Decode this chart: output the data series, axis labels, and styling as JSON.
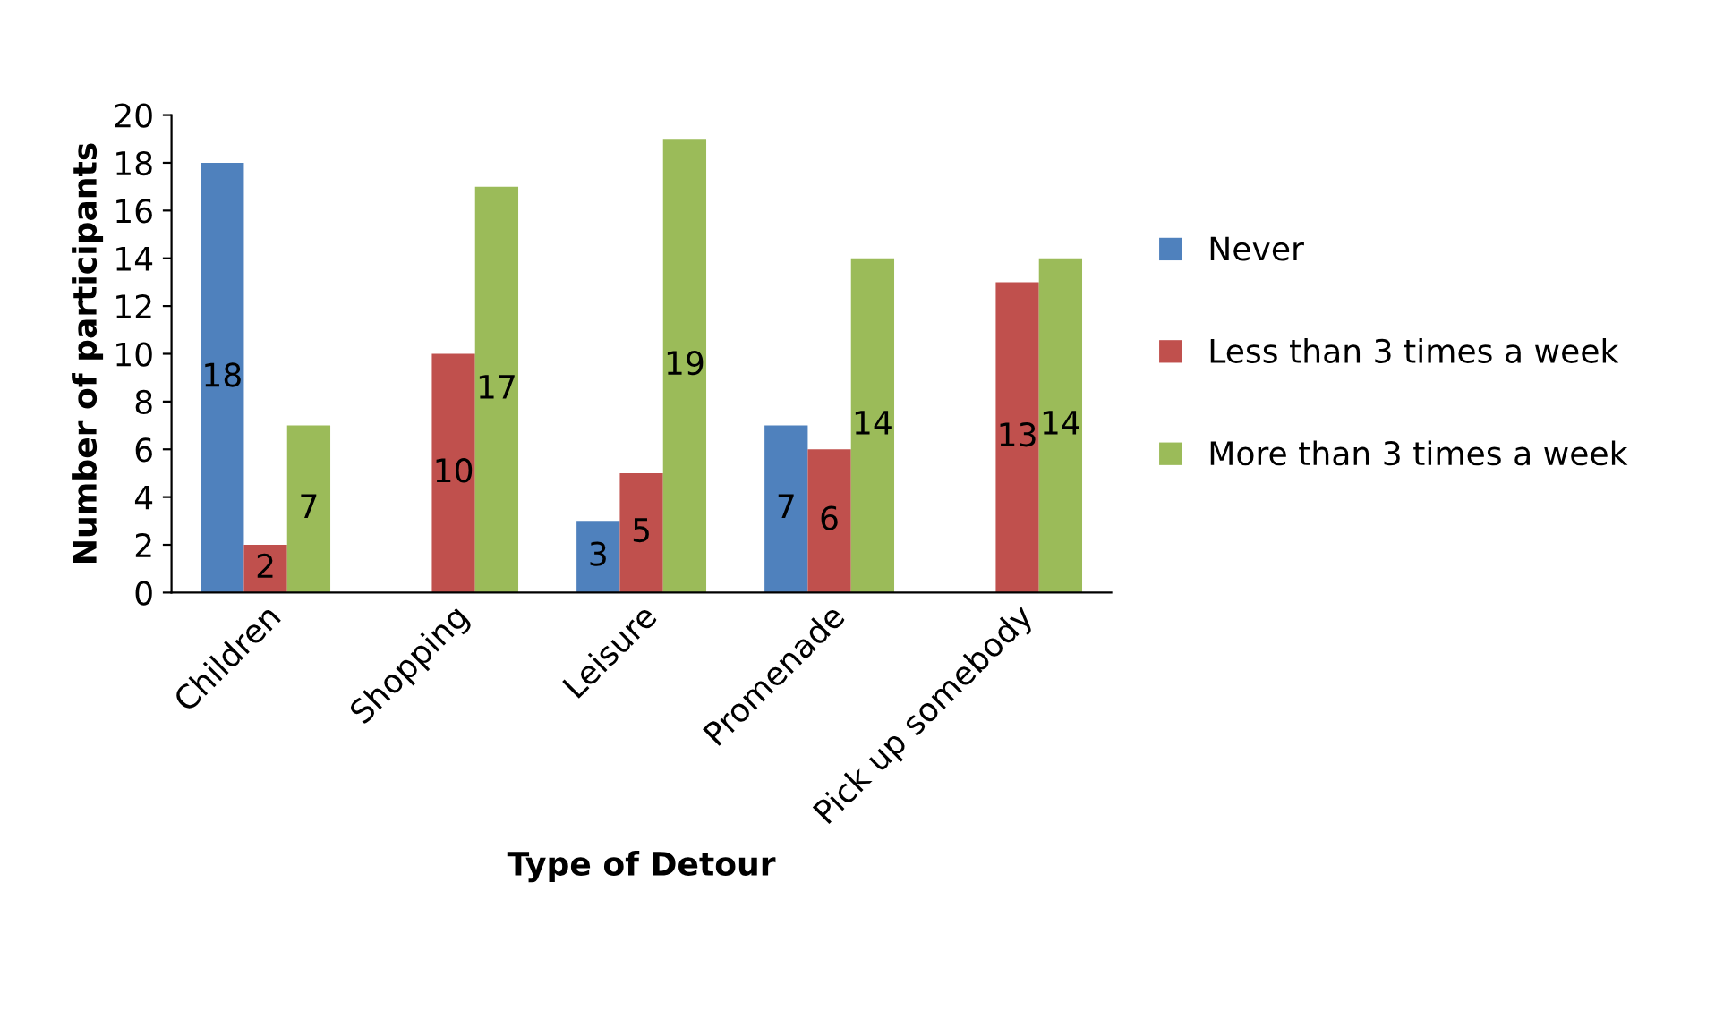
{
  "chart_data": {
    "type": "bar",
    "xlabel": "Type of Detour",
    "ylabel": "Number of participants",
    "categories": [
      "Children",
      "Shopping",
      "Leisure",
      "Promenade",
      "Pick up somebody"
    ],
    "series": [
      {
        "name": "Never",
        "color": "#4f81bd",
        "values": [
          18,
          null,
          3,
          7,
          null
        ]
      },
      {
        "name": "Less than 3 times a week",
        "color": "#c0504d",
        "values": [
          2,
          10,
          5,
          6,
          13
        ]
      },
      {
        "name": "More than 3 times a week",
        "color": "#9bbb59",
        "values": [
          7,
          17,
          19,
          14,
          14
        ]
      }
    ],
    "ylim": [
      0,
      20
    ],
    "yticks": [
      0,
      2,
      4,
      6,
      8,
      10,
      12,
      14,
      16,
      18,
      20
    ],
    "grid": false,
    "legend": "right",
    "data_labels": true
  }
}
